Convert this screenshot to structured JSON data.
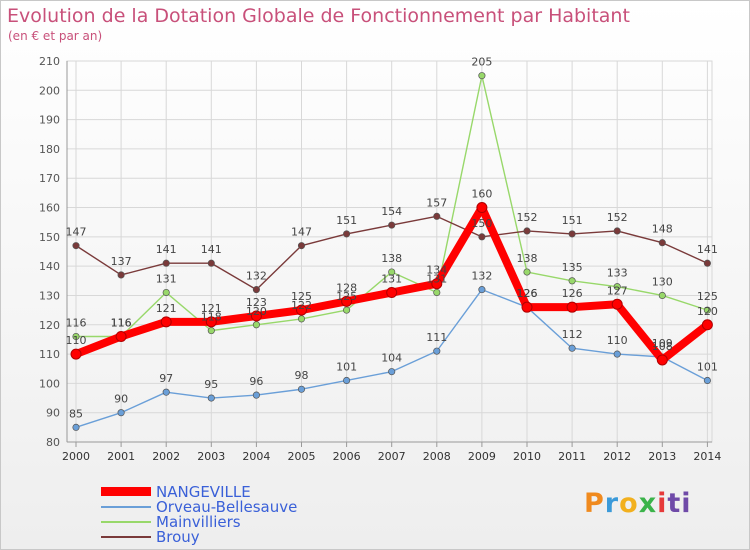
{
  "chart_data": {
    "type": "line",
    "title": "Evolution de la Dotation Globale de Fonctionnement par Habitant",
    "subtitle": "(en € et par an)",
    "xlabel": "",
    "ylabel": "",
    "ylim": [
      80,
      210
    ],
    "y_ticks": [
      80,
      90,
      100,
      110,
      120,
      130,
      140,
      150,
      160,
      170,
      180,
      190,
      200,
      210
    ],
    "x": [
      "2000",
      "2001",
      "2002",
      "2003",
      "2004",
      "2005",
      "2006",
      "2007",
      "2008",
      "2009",
      "2010",
      "2011",
      "2012",
      "2013",
      "2014"
    ],
    "grid": true,
    "legend_position": "bottom-left",
    "series": [
      {
        "name": "NANGEVILLE",
        "color": "#ff0000",
        "values": [
          110,
          116,
          121,
          121,
          123,
          125,
          128,
          131,
          134,
          160,
          126,
          126,
          127,
          108,
          120
        ]
      },
      {
        "name": "Orveau-Bellesauve",
        "color": "#6a9fd8",
        "values": [
          85,
          90,
          97,
          95,
          96,
          98,
          101,
          104,
          111,
          132,
          126,
          112,
          110,
          109,
          101
        ]
      },
      {
        "name": "Mainvilliers",
        "color": "#98d86a",
        "values": [
          116,
          116,
          131,
          118,
          120,
          122,
          125,
          138,
          131,
          205,
          138,
          135,
          133,
          130,
          125
        ]
      },
      {
        "name": "Brouy",
        "color": "#7a3a3a",
        "values": [
          147,
          137,
          141,
          141,
          132,
          147,
          151,
          154,
          157,
          150,
          152,
          151,
          152,
          148,
          141
        ]
      }
    ]
  },
  "logo": {
    "p1": "P",
    "p2": "r",
    "p3": "o",
    "p4": "x",
    "p5": "i",
    "p6": "ti"
  }
}
